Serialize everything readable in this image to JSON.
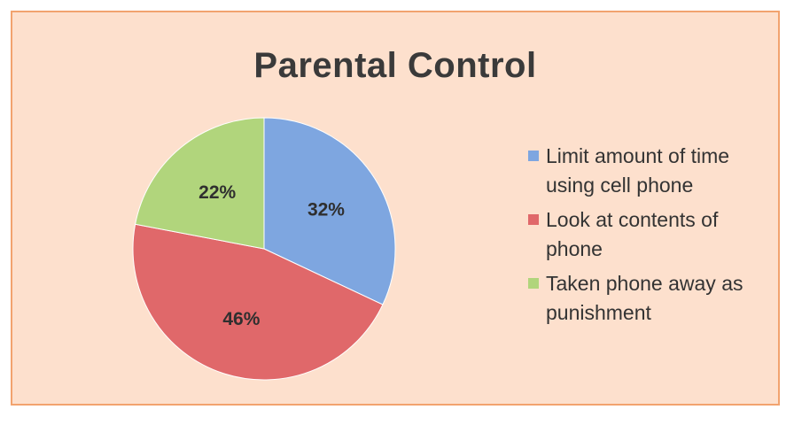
{
  "chart_data": {
    "type": "pie",
    "title": "Parental Control",
    "slices": [
      {
        "name": "Limit amount of time using cell phone",
        "value": 32,
        "label": "32%",
        "color": "#7ea6e0"
      },
      {
        "name": "Look at contents of phone",
        "value": 46,
        "label": "46%",
        "color": "#e0686a"
      },
      {
        "name": "Taken phone away as punishment",
        "value": 22,
        "label": "22%",
        "color": "#b1d57c"
      }
    ],
    "legend_position": "right"
  }
}
